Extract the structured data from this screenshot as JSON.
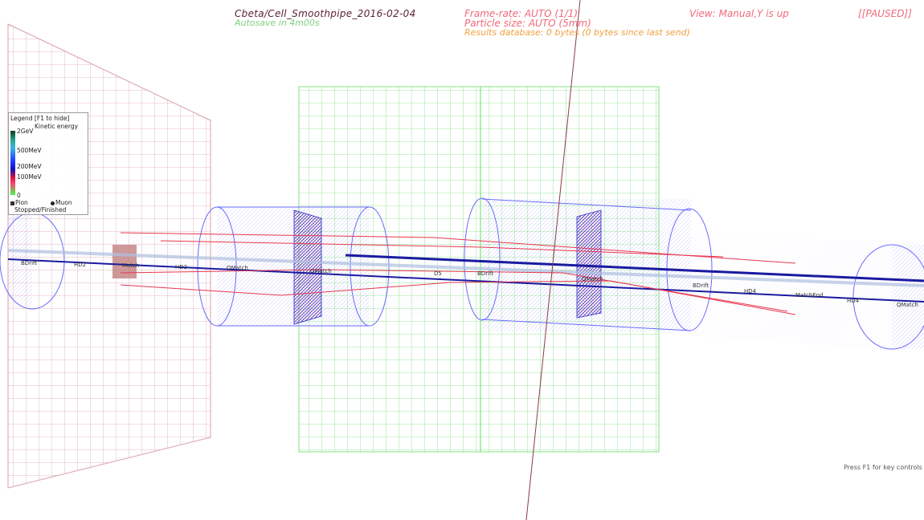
{
  "hud": {
    "title": "Cbeta/Cell_Smoothpipe_2016-02-04",
    "autosave": "Autosave in 4m00s",
    "frame_rate": "Frame-rate: AUTO (1/1)",
    "particle_size": "Particle size: AUTO (5mm)",
    "results_db": "Results database: 0 bytes (0 bytes since last send)",
    "view": "View: Manual,Y is up",
    "paused": "[[PAUSED]]"
  },
  "legend": {
    "title": "Legend [F1 to hide]",
    "subtitle": "Kinetic energy",
    "ticks": [
      "2GeV",
      "500MeV",
      "200MeV",
      "100MeV",
      "0"
    ],
    "pion": "Pion",
    "muon": "Muon",
    "stopped": "Stopped/Finished"
  },
  "labels": {
    "bdrift1": "BDrift",
    "hd2_a": "HD2",
    "match": "Match",
    "hd2_b": "HD2",
    "qmatch": "QMatch",
    "qmatch2": "QMatch",
    "d5": "D5",
    "bdrift2": "BDrift",
    "qmatch3": "QMatch",
    "bdrift3": "BDrift",
    "hd4": "HD4",
    "matchend": "MatchEnd",
    "hd4_b": "HD4",
    "qmatch4": "QMatch"
  },
  "key_hint": "Press F1 for key controls",
  "colors": {
    "pink_grid": "#d8a0a8",
    "green_grid": "#7fe07f",
    "blue_wire": "#6a6aff",
    "beam_blue": "#1a1aa0",
    "track_red": "#e8384e",
    "hud_pink": "#f06a7a",
    "hud_orange": "#f0a040",
    "hud_green": "#7fd07f",
    "hud_title": "#5a1e2e"
  }
}
